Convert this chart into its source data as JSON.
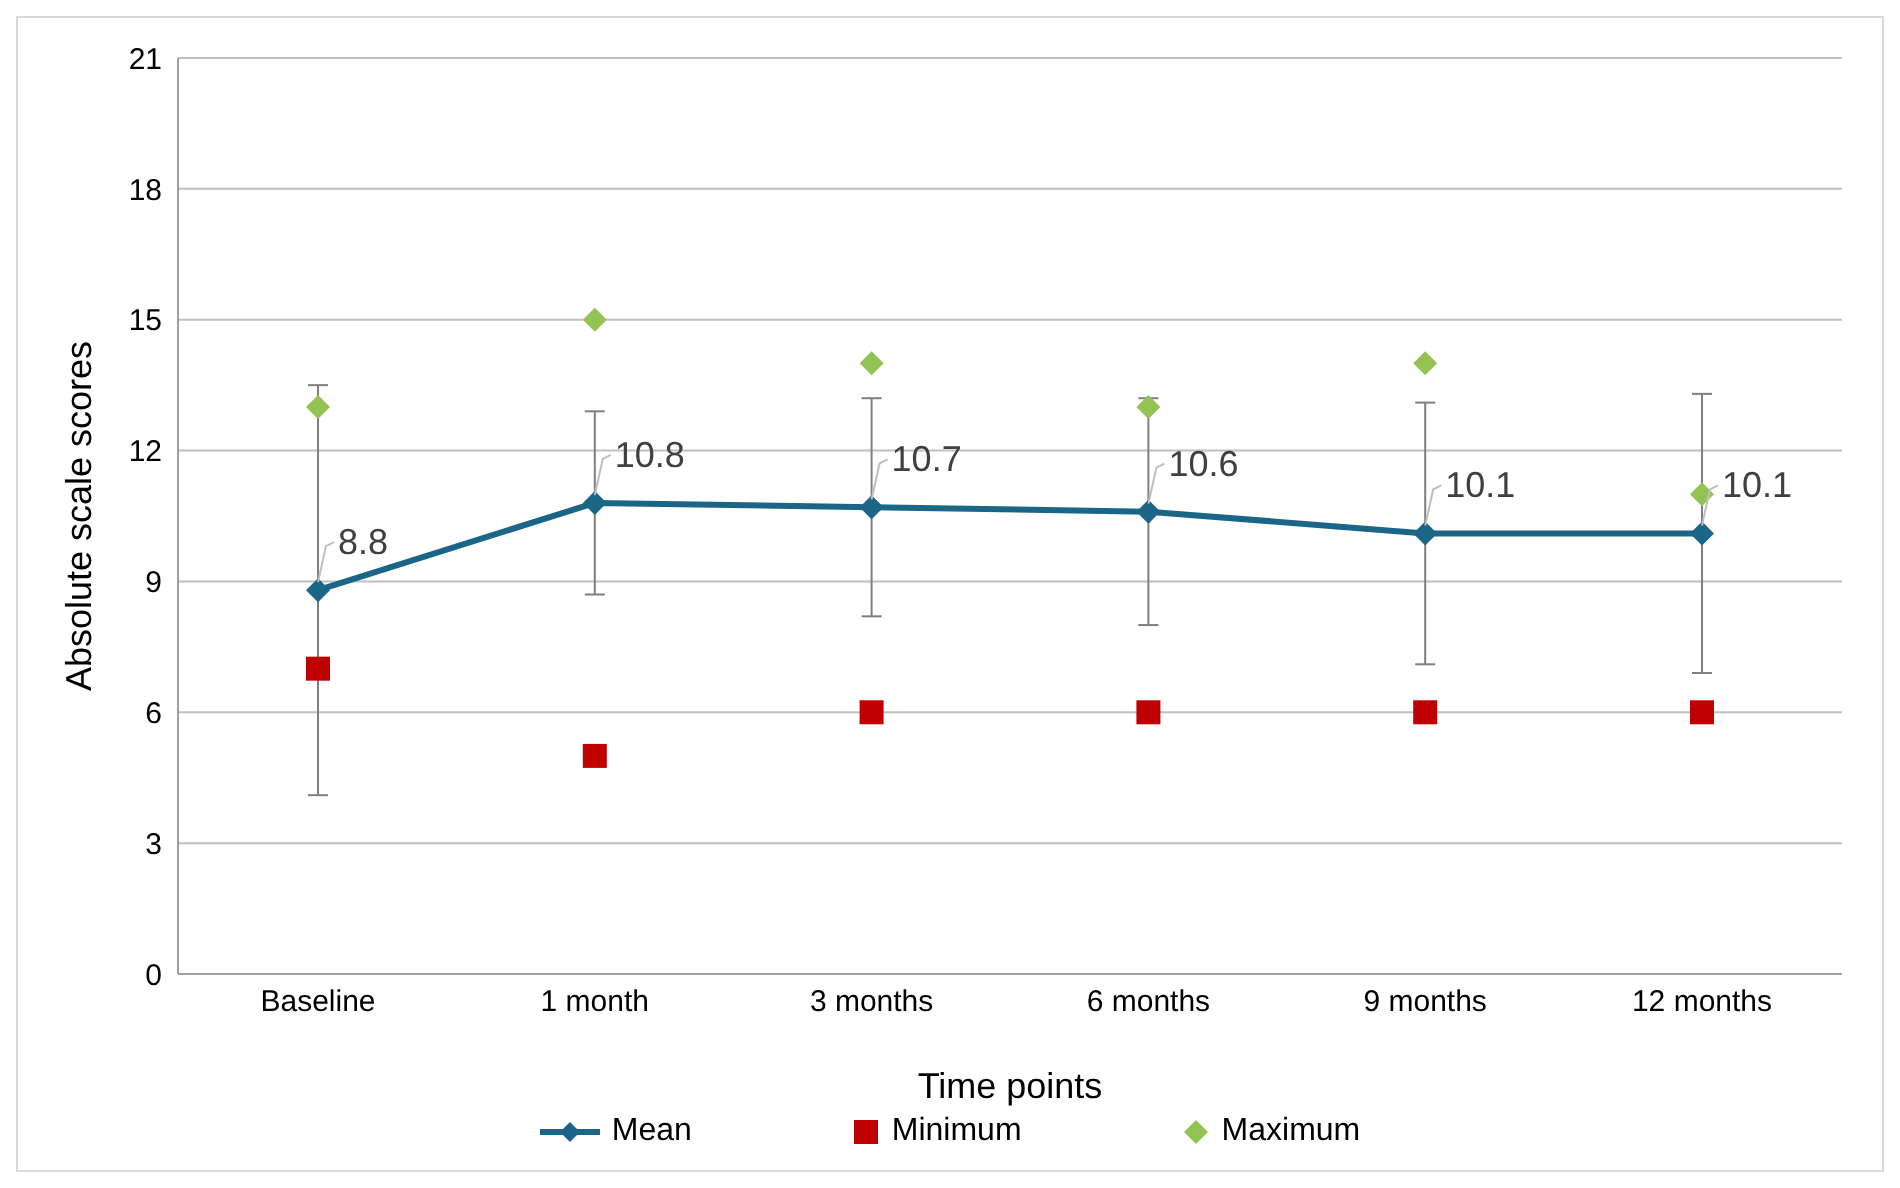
{
  "chart_data": {
    "type": "line",
    "xlabel": "Time points",
    "ylabel": "Absolute scale scores",
    "categories": [
      "Baseline",
      "1 month",
      "3 months",
      "6 months",
      "9 months",
      "12 months"
    ],
    "series": [
      {
        "name": "Mean",
        "color": "#1b6586",
        "marker": "diamond",
        "values": [
          8.8,
          10.8,
          10.7,
          10.6,
          10.1,
          10.1
        ],
        "errors": [
          4.7,
          2.1,
          2.5,
          2.6,
          3.0,
          3.2
        ],
        "data_labels": true
      },
      {
        "name": "Minimum",
        "type": "scatter",
        "color": "#c00000",
        "marker": "square",
        "values": [
          7,
          5,
          6,
          6,
          6,
          6
        ]
      },
      {
        "name": "Maximum",
        "type": "scatter",
        "color": "#92c353",
        "marker": "diamond",
        "values": [
          13,
          15,
          14,
          13,
          14,
          11
        ]
      }
    ],
    "ylim": [
      0,
      21
    ],
    "yticks": [
      0,
      3,
      6,
      9,
      12,
      15,
      18,
      21
    ],
    "grid": "y",
    "legend": "bottom"
  }
}
